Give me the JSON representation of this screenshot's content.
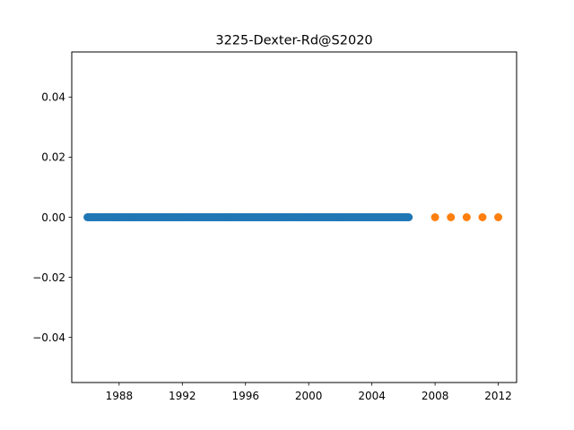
{
  "chart_data": {
    "type": "scatter",
    "title": "3225-Dexter-Rd@S2020",
    "xlabel": "",
    "ylabel": "",
    "x_axis_type": "date",
    "xlim": [
      "1985-01-01",
      "2013-03-01"
    ],
    "ylim": [
      -0.055,
      0.055
    ],
    "x_ticks": [
      "1988",
      "1992",
      "1996",
      "2000",
      "2004",
      "2008",
      "2012"
    ],
    "y_ticks": [
      "0.04",
      "0.02",
      "0.00",
      "−0.02",
      "−0.04"
    ],
    "y_tick_values": [
      0.04,
      0.02,
      0.0,
      -0.02,
      -0.04
    ],
    "grid": false,
    "legend": "none",
    "colors": {
      "series_0": "#1f77b4",
      "series_1": "#ff7f0e"
    },
    "series": [
      {
        "x_start": "1986-01-01",
        "x_end": "2006-05-01",
        "x_frequency": "monthly",
        "y": 0.0
      },
      {
        "x": [
          "2008-01-01",
          "2009-01-01",
          "2010-01-01",
          "2011-01-01",
          "2012-01-01"
        ],
        "y": [
          0.0,
          0.0,
          0.0,
          0.0,
          0.0
        ]
      }
    ]
  }
}
